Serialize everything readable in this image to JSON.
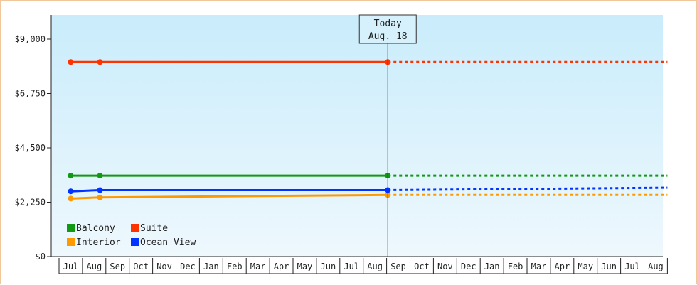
{
  "chart_data": {
    "type": "line",
    "x_months": [
      "Jul",
      "Aug",
      "Sep",
      "Oct",
      "Nov",
      "Dec",
      "Jan",
      "Feb",
      "Mar",
      "Apr",
      "May",
      "Jun",
      "Jul",
      "Aug",
      "Sep",
      "Oct",
      "Nov",
      "Dec",
      "Jan",
      "Feb",
      "Mar",
      "Apr",
      "May",
      "Jun",
      "Jul",
      "Aug"
    ],
    "ylim": [
      0,
      10000
    ],
    "yticks": [
      0,
      2250,
      4500,
      6750,
      9000
    ],
    "ytick_labels": [
      "$0",
      "$2,250",
      "$4,500",
      "$6,750",
      "$9,000"
    ],
    "today": {
      "line1": "Today",
      "line2": "Aug. 18",
      "x": 13.55
    },
    "series": [
      {
        "name": "Balcony",
        "color": "#119911",
        "points": [
          [
            0.0,
            3350
          ],
          [
            1.25,
            3350
          ],
          [
            13.55,
            3350
          ]
        ],
        "forecast": [
          [
            13.55,
            3350
          ],
          [
            25.5,
            3350
          ]
        ]
      },
      {
        "name": "Suite",
        "color": "#ff3300",
        "points": [
          [
            0.0,
            8050
          ],
          [
            1.25,
            8050
          ],
          [
            13.55,
            8050
          ]
        ],
        "forecast": [
          [
            13.55,
            8050
          ],
          [
            25.5,
            8050
          ]
        ]
      },
      {
        "name": "Interior",
        "color": "#ff9900",
        "points": [
          [
            0.0,
            2400
          ],
          [
            1.25,
            2450
          ],
          [
            13.55,
            2550
          ]
        ],
        "forecast": [
          [
            13.55,
            2550
          ],
          [
            25.5,
            2550
          ]
        ]
      },
      {
        "name": "Ocean View",
        "color": "#0033ff",
        "points": [
          [
            0.0,
            2700
          ],
          [
            1.25,
            2750
          ],
          [
            13.55,
            2750
          ]
        ],
        "forecast": [
          [
            13.55,
            2750
          ],
          [
            25.5,
            2850
          ]
        ]
      }
    ],
    "grid": false,
    "legend_position": "bottom-left"
  }
}
